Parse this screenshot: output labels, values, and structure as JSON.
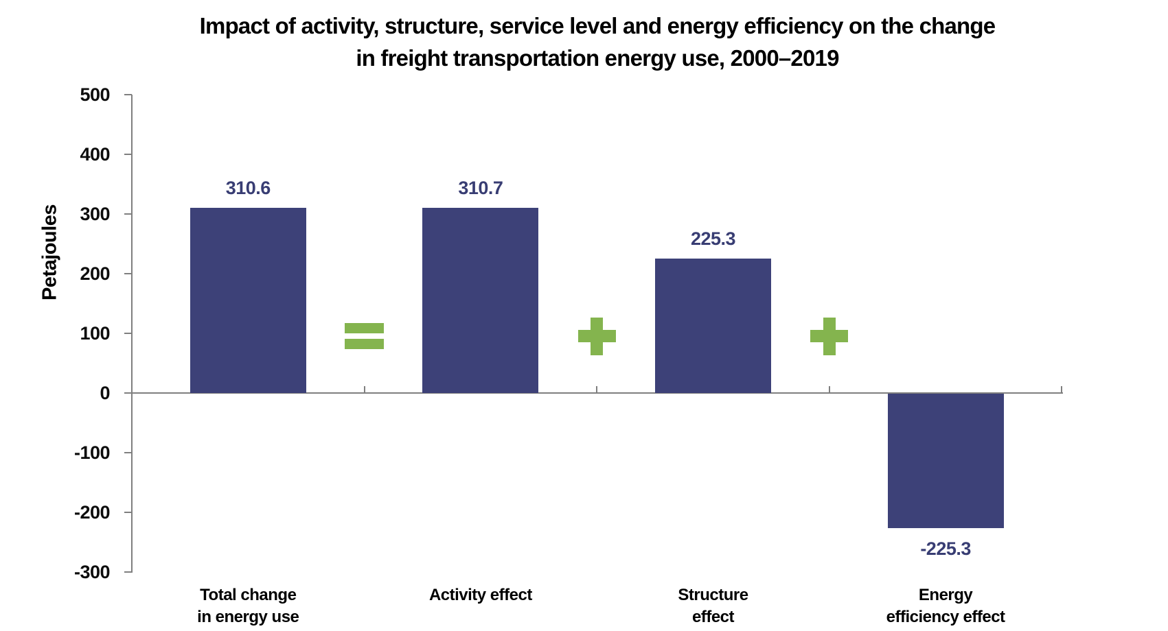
{
  "chart_data": {
    "type": "bar",
    "title_line1": "Impact of activity, structure, service level and energy efficiency on the change",
    "title_line2": "in freight transportation energy use, 2000–2019",
    "ylabel": "Petajoules",
    "xlabel": "",
    "ylim": [
      -300,
      500
    ],
    "y_tick_step": 100,
    "y_tick_labels": [
      "500",
      "400",
      "300",
      "200",
      "100",
      "0",
      "-100",
      "-200",
      "-300"
    ],
    "grid": false,
    "legend": false,
    "categories": [
      "Total change in energy use",
      "Activity effect",
      "Structure effect",
      "Energy efficiency effect"
    ],
    "category_label_lines": [
      [
        "Total change",
        "in energy use"
      ],
      [
        "Activity effect"
      ],
      [
        "Structure",
        "effect"
      ],
      [
        "Energy",
        "efficiency effect"
      ]
    ],
    "values": [
      310.6,
      310.7,
      225.3,
      -225.3
    ],
    "value_labels": [
      "310.6",
      "310.7",
      "225.3",
      "-225.3"
    ],
    "operators_between_bars": [
      "=",
      "+",
      "+"
    ],
    "colors": {
      "bar": "#3d4178",
      "value_label_text": "#383d73",
      "operator_green": "#84b44e",
      "axis_gray": "#7f7f7f",
      "text_black": "#000000"
    }
  }
}
